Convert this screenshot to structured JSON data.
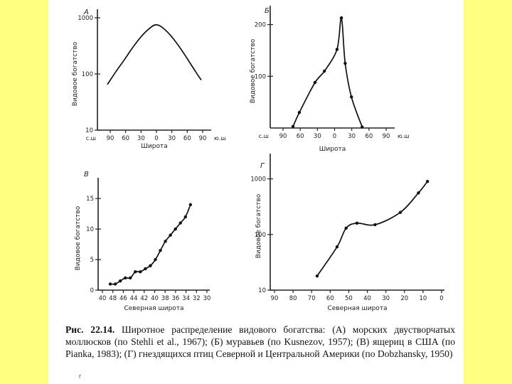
{
  "caption": {
    "prefix": "Рис. 22.14.",
    "text": "Широтное распределение видового богатства: (А) морских двустворчатых моллюсков (по Stehli et al., 1967); (Б) муравьев (по Kusnezov, 1957); (В) ящериц в США (по Pianka, 1983); (Г) гнездящихся птиц Северной и Центральной Америки (по Dobzhansky, 1950)"
  },
  "footnote": "г",
  "chart_data": [
    {
      "panel_label": "А",
      "type": "line",
      "ylabel": "Видовое богатство",
      "xlabel": "Широта",
      "y_scale": "log",
      "ylim": [
        10,
        1000
      ],
      "y_ticks": [
        "10",
        "100",
        "1000"
      ],
      "xlim": [
        -90,
        90
      ],
      "x_ticks": [
        "90",
        "60",
        "30",
        "0",
        "30",
        "60",
        "90"
      ],
      "x_side_labels": [
        "с.ш",
        "ю.ш"
      ],
      "series": [
        {
          "x": [
            -85,
            -70,
            -55,
            -40,
            -25,
            -10,
            0,
            10,
            25,
            40,
            55,
            70,
            80
          ],
          "y": [
            65,
            110,
            180,
            300,
            470,
            660,
            750,
            690,
            500,
            320,
            190,
            110,
            78
          ]
        }
      ]
    },
    {
      "panel_label": "Б",
      "type": "line",
      "ylabel": "Видовое богатство",
      "xlabel": "Широта",
      "ylim": [
        0,
        220
      ],
      "y_ticks": [
        "100",
        "200"
      ],
      "xlim": [
        -90,
        90
      ],
      "x_ticks": [
        "90",
        "60",
        "30",
        "0",
        "30",
        "60",
        "90"
      ],
      "x_side_labels": [
        "с.ш",
        "ю.ш"
      ],
      "series": [
        {
          "x": [
            -65,
            -55,
            -30,
            -15,
            5,
            12,
            18,
            28,
            45
          ],
          "y": [
            3,
            30,
            88,
            110,
            152,
            213,
            125,
            60,
            2
          ]
        }
      ]
    },
    {
      "panel_label": "В",
      "type": "scatter",
      "ylabel": "Видовое богатство",
      "xlabel": "Северная широта",
      "ylim": [
        0,
        17
      ],
      "y_ticks": [
        "0",
        "5",
        "10",
        "15"
      ],
      "xlim": [
        49,
        29
      ],
      "x_ticks": [
        "40",
        "48",
        "46",
        "44",
        "42",
        "40",
        "38",
        "36",
        "34",
        "32",
        "30"
      ],
      "series": [
        {
          "x": [
            48,
            47,
            46,
            45,
            44,
            43,
            42,
            41,
            40,
            39,
            38,
            37,
            36,
            35,
            34,
            33,
            32
          ],
          "y": [
            1,
            1,
            1.5,
            2,
            2,
            3,
            3,
            3.5,
            4,
            5,
            6.5,
            8,
            9,
            10,
            11,
            12,
            14
          ]
        }
      ]
    },
    {
      "panel_label": "Г",
      "type": "scatter",
      "ylabel": "Видовое богатство",
      "xlabel": "Северная широта",
      "y_scale": "log",
      "ylim": [
        10,
        2000
      ],
      "y_ticks": [
        "10",
        "100",
        "1000"
      ],
      "xlim": [
        90,
        0
      ],
      "x_ticks": [
        "90",
        "80",
        "70",
        "60",
        "50",
        "40",
        "30",
        "20",
        "10",
        "0"
      ],
      "series": [
        {
          "x": [
            68,
            57,
            52,
            46,
            36,
            22,
            12,
            7
          ],
          "y": [
            18,
            60,
            130,
            160,
            150,
            250,
            560,
            900
          ]
        }
      ]
    }
  ]
}
